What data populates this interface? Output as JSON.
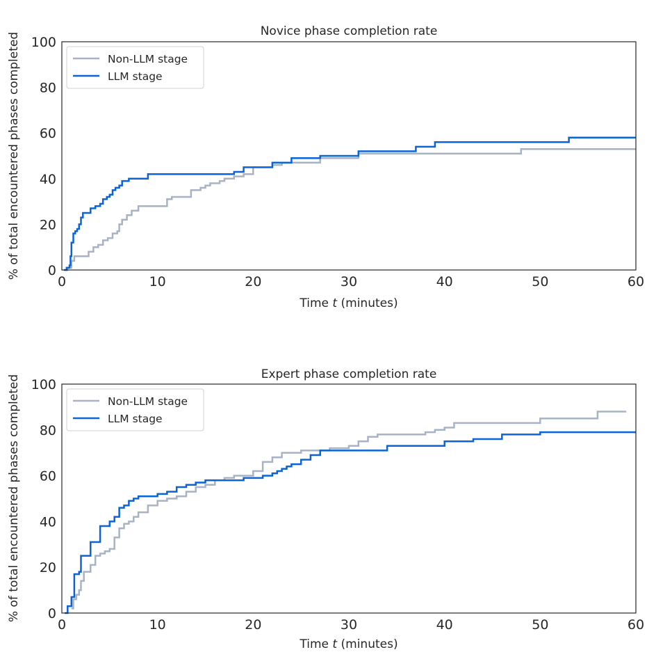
{
  "colors": {
    "non_llm": "#a7b3c4",
    "llm": "#0a64d6",
    "text": "#262626"
  },
  "chart_data": [
    {
      "type": "line",
      "title": "Novice phase completion rate",
      "xlabel_prefix": "Time ",
      "xlabel_var": "t",
      "xlabel_suffix": " (minutes)",
      "ylabel": "% of total encountered phases completed",
      "xlim": [
        0,
        60
      ],
      "ylim": [
        0,
        100
      ],
      "xticks": [
        "0",
        "10",
        "20",
        "30",
        "40",
        "50",
        "60"
      ],
      "yticks": [
        "0",
        "20",
        "40",
        "60",
        "80",
        "100"
      ],
      "grid": false,
      "legend_position": "upper-left",
      "step": true,
      "series": [
        {
          "name": "Non-LLM stage",
          "color_key": "non_llm",
          "x": [
            0.3,
            0.6,
            1.0,
            1.3,
            2.8,
            3.3,
            3.8,
            4.3,
            4.8,
            5.3,
            5.8,
            6.0,
            6.3,
            6.8,
            7.3,
            8.0,
            11.0,
            11.5,
            12.0,
            13.5,
            14.0,
            14.5,
            15.0,
            15.5,
            16.0,
            16.5,
            17.0,
            17.5,
            18.0,
            19.0,
            20.0,
            22.0,
            23.0,
            24.0,
            27.0,
            31.0,
            48.0,
            60.0
          ],
          "y": [
            0,
            1,
            4,
            6,
            8,
            10,
            11,
            13,
            14,
            16,
            17,
            20,
            22,
            24,
            26,
            28,
            31,
            32,
            32,
            35,
            35,
            36,
            37,
            38,
            38,
            39,
            40,
            40,
            41,
            42,
            45,
            46,
            47,
            47,
            49,
            51,
            53,
            53
          ]
        },
        {
          "name": "LLM stage",
          "color_key": "llm",
          "x": [
            0.2,
            0.5,
            0.8,
            0.9,
            1.0,
            1.2,
            1.4,
            1.6,
            1.8,
            2.0,
            2.2,
            3.0,
            3.5,
            4.0,
            4.3,
            4.7,
            5.0,
            5.3,
            5.6,
            6.0,
            6.3,
            7.0,
            9.0,
            18.0,
            19.0,
            22.0,
            24.0,
            27.0,
            31.0,
            37.0,
            39.0,
            53.0,
            60.0
          ],
          "y": [
            0,
            1,
            2,
            6,
            12,
            16,
            17,
            18,
            20,
            23,
            25,
            27,
            28,
            29,
            31,
            32,
            33,
            35,
            36,
            37,
            39,
            40,
            42,
            43,
            45,
            47,
            49,
            50,
            52,
            54,
            56,
            58,
            58
          ]
        }
      ]
    },
    {
      "type": "line",
      "title": "Expert phase completion rate",
      "xlabel_prefix": "Time ",
      "xlabel_var": "t",
      "xlabel_suffix": " (minutes)",
      "ylabel": "% of total encountered phases completed",
      "xlim": [
        0,
        60
      ],
      "ylim": [
        0,
        100
      ],
      "xticks": [
        "0",
        "10",
        "20",
        "30",
        "40",
        "50",
        "60"
      ],
      "yticks": [
        "0",
        "20",
        "40",
        "60",
        "80",
        "100"
      ],
      "grid": false,
      "legend_position": "upper-left",
      "step": true,
      "series": [
        {
          "name": "Non-LLM stage",
          "color_key": "non_llm",
          "x": [
            1.0,
            1.2,
            1.5,
            1.8,
            2.0,
            2.3,
            3.0,
            3.5,
            4.0,
            4.5,
            5.0,
            5.5,
            6.0,
            6.5,
            7.0,
            7.5,
            8.0,
            9.0,
            10.0,
            11.0,
            12.0,
            13.0,
            14.0,
            15.0,
            16.0,
            17.0,
            18.0,
            20.0,
            21.0,
            22.0,
            23.0,
            25.0,
            26.0,
            28.0,
            30.0,
            31.0,
            32.0,
            33.0,
            38.0,
            39.0,
            40.0,
            41.0,
            50.0,
            56.0,
            59.0
          ],
          "y": [
            2,
            6,
            8,
            10,
            14,
            18,
            21,
            25,
            26,
            27,
            28,
            33,
            37,
            39,
            40,
            42,
            44,
            47,
            49,
            50,
            51,
            53,
            55,
            56,
            58,
            59,
            60,
            62,
            66,
            68,
            70,
            71,
            71,
            72,
            73,
            75,
            77,
            78,
            79,
            80,
            81,
            83,
            85,
            88,
            88
          ]
        },
        {
          "name": "LLM stage",
          "color_key": "llm",
          "x": [
            0.3,
            0.6,
            1.0,
            1.3,
            1.8,
            2.0,
            3.0,
            4.0,
            5.0,
            5.5,
            6.0,
            6.5,
            7.0,
            7.5,
            8.0,
            10.0,
            11.0,
            12.0,
            13.0,
            14.0,
            15.0,
            18.0,
            19.0,
            20.0,
            21.0,
            22.0,
            22.5,
            23.0,
            23.5,
            24.0,
            25.0,
            26.0,
            27.0,
            34.0,
            40.0,
            43.0,
            46.0,
            50.0,
            60.0
          ],
          "y": [
            0,
            3,
            7,
            17,
            18,
            25,
            31,
            38,
            40,
            42,
            46,
            47,
            49,
            50,
            51,
            52,
            53,
            55,
            56,
            57,
            58,
            58,
            59,
            59,
            60,
            61,
            62,
            63,
            64,
            65,
            67,
            69,
            71,
            73,
            75,
            76,
            78,
            79,
            79
          ]
        }
      ]
    }
  ]
}
